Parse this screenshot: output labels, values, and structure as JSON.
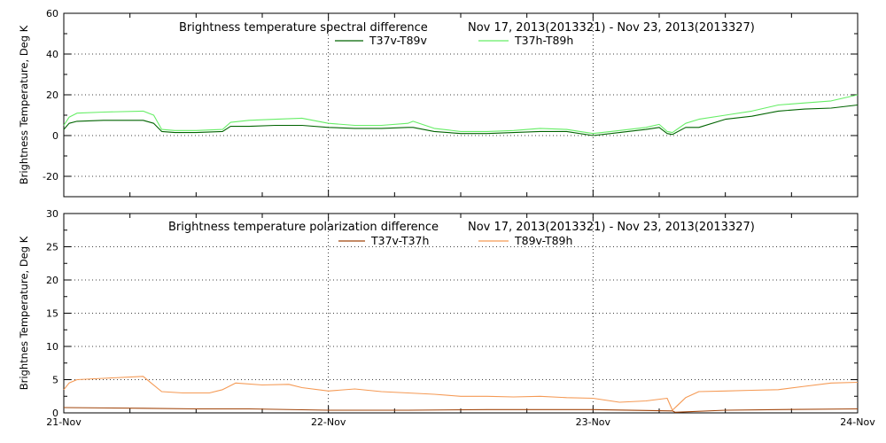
{
  "colors": {
    "T37v-T89v": "#006400",
    "T37h-T89h": "#66ee66",
    "T37v-T37h": "#a0440a",
    "T89v-T89h": "#f59a55"
  },
  "chart_data": [
    {
      "type": "line",
      "title": "Brightness temperature spectral difference",
      "date_range": "Nov 17, 2013(2013321) - Nov 23, 2013(2013327)",
      "ylabel": "Brightness Temperature, Deg K",
      "xlabel": "",
      "ylim": [
        -30,
        60
      ],
      "yticks": [
        -20,
        0,
        20,
        40,
        60
      ],
      "ytick_labels": [
        "-20",
        "0",
        "20",
        "40",
        "60"
      ],
      "xlim": [
        0,
        3
      ],
      "xticks": [
        0,
        1,
        2,
        3
      ],
      "xtick_labels": [
        "21-Nov",
        "22-Nov",
        "23-Nov",
        "24-Nov"
      ],
      "grid": true,
      "legend": "top-center",
      "series": [
        {
          "name": "T37v-T89v",
          "x": [
            0,
            0.02,
            0.05,
            0.15,
            0.3,
            0.34,
            0.37,
            0.42,
            0.5,
            0.6,
            0.63,
            0.7,
            0.8,
            0.9,
            1.0,
            1.1,
            1.2,
            1.3,
            1.32,
            1.4,
            1.5,
            1.6,
            1.7,
            1.8,
            1.9,
            2.0,
            2.1,
            2.2,
            2.25,
            2.28,
            2.3,
            2.35,
            2.4,
            2.5,
            2.6,
            2.7,
            2.8,
            2.9,
            3.0
          ],
          "y": [
            3,
            6,
            7,
            7.5,
            7.5,
            6,
            2,
            1.5,
            1.5,
            2,
            4.5,
            4.5,
            5,
            5,
            4,
            3.5,
            3.5,
            4,
            4,
            2,
            1,
            1,
            1.5,
            2,
            2,
            0,
            1.5,
            3,
            4,
            1,
            0.5,
            4,
            4,
            8,
            9.5,
            12,
            13,
            13.5,
            15
          ]
        },
        {
          "name": "T37h-T89h",
          "x": [
            0,
            0.02,
            0.05,
            0.15,
            0.3,
            0.34,
            0.37,
            0.42,
            0.5,
            0.6,
            0.63,
            0.7,
            0.8,
            0.9,
            1.0,
            1.1,
            1.2,
            1.3,
            1.32,
            1.4,
            1.5,
            1.6,
            1.7,
            1.8,
            1.9,
            2.0,
            2.1,
            2.2,
            2.25,
            2.28,
            2.3,
            2.35,
            2.4,
            2.5,
            2.6,
            2.7,
            2.8,
            2.9,
            3.0
          ],
          "y": [
            5,
            9,
            11,
            11.5,
            12,
            10,
            3,
            2.5,
            2.5,
            3,
            6.5,
            7.5,
            8,
            8.5,
            6,
            5,
            5,
            6,
            7,
            3.5,
            2,
            2,
            2.5,
            3.5,
            3,
            1,
            2.5,
            4,
            5.5,
            2,
            1.5,
            6,
            8,
            10,
            12,
            15,
            16,
            17,
            20
          ]
        }
      ]
    },
    {
      "type": "line",
      "title": "Brightness temperature polarization difference",
      "date_range": "Nov 17, 2013(2013321) - Nov 23, 2013(2013327)",
      "ylabel": "Brightnes Temperature, Deg K",
      "xlabel": "",
      "ylim": [
        0,
        30
      ],
      "yticks": [
        0,
        5,
        10,
        15,
        20,
        25,
        30
      ],
      "ytick_labels": [
        "0",
        "5",
        "10",
        "15",
        "20",
        "25",
        "30"
      ],
      "xlim": [
        0,
        3
      ],
      "xticks": [
        0,
        1,
        2,
        3
      ],
      "xtick_labels": [
        "21-Nov",
        "22-Nov",
        "23-Nov",
        "24-Nov"
      ],
      "grid": true,
      "legend": "top-center",
      "series": [
        {
          "name": "T37v-T37h",
          "x": [
            0,
            0.3,
            0.5,
            0.7,
            1.0,
            1.3,
            1.6,
            2.0,
            2.3,
            2.31,
            2.5,
            2.7,
            3.0
          ],
          "y": [
            0.8,
            0.7,
            0.6,
            0.6,
            0.4,
            0.4,
            0.5,
            0.5,
            0.3,
            0.1,
            0.4,
            0.5,
            0.6
          ]
        },
        {
          "name": "T89v-T89h",
          "x": [
            0,
            0.02,
            0.05,
            0.15,
            0.3,
            0.33,
            0.37,
            0.45,
            0.55,
            0.6,
            0.65,
            0.75,
            0.85,
            0.9,
            1.0,
            1.1,
            1.2,
            1.3,
            1.4,
            1.5,
            1.6,
            1.7,
            1.8,
            1.9,
            2.0,
            2.1,
            2.2,
            2.28,
            2.3,
            2.35,
            2.4,
            2.5,
            2.6,
            2.7,
            2.8,
            2.9,
            3.0
          ],
          "y": [
            3.5,
            4.5,
            5,
            5.2,
            5.5,
            4.5,
            3.2,
            3,
            3,
            3.5,
            4.5,
            4.2,
            4.3,
            3.8,
            3.3,
            3.6,
            3.2,
            3,
            2.8,
            2.5,
            2.5,
            2.4,
            2.5,
            2.3,
            2.2,
            1.6,
            1.8,
            2.2,
            0.4,
            2.3,
            3.2,
            3.3,
            3.4,
            3.5,
            4.0,
            4.5,
            4.6
          ]
        }
      ]
    }
  ]
}
